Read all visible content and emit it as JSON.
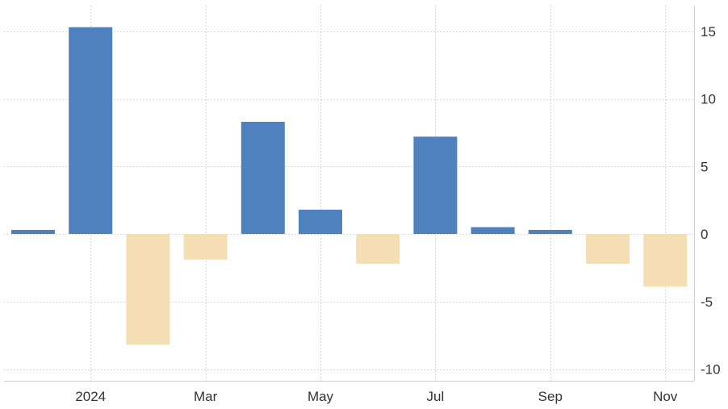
{
  "chart_data": {
    "type": "bar",
    "title": "",
    "xlabel": "",
    "ylabel": "",
    "categories": [
      "2023-12",
      "2024-01",
      "2024-02",
      "2024-03",
      "2024-04",
      "2024-05",
      "2024-06",
      "2024-07",
      "2024-08",
      "2024-09",
      "2024-10",
      "2024-11"
    ],
    "values": [
      0.3,
      15.3,
      -8.2,
      -1.9,
      8.3,
      1.8,
      -2.2,
      7.2,
      0.5,
      0.3,
      -2.2,
      -3.9
    ],
    "ylim": [
      -10.3,
      16.9
    ],
    "y_ticks": [
      15,
      10,
      5,
      0,
      -5,
      -10
    ],
    "y_tick_labels": [
      "15",
      "10",
      "5",
      "0",
      "-5",
      "-10"
    ],
    "y_axis_position": "right",
    "x_ticks": [
      "2024-01",
      "2024-03",
      "2024-05",
      "2024-07",
      "2024-09",
      "2024-11"
    ],
    "x_tick_labels": [
      "2024",
      "Mar",
      "May",
      "Jul",
      "Sep",
      "Nov"
    ],
    "positive_color": "#4e81be",
    "negative_color": "#f6deb4",
    "grid": true,
    "legend": "none"
  }
}
